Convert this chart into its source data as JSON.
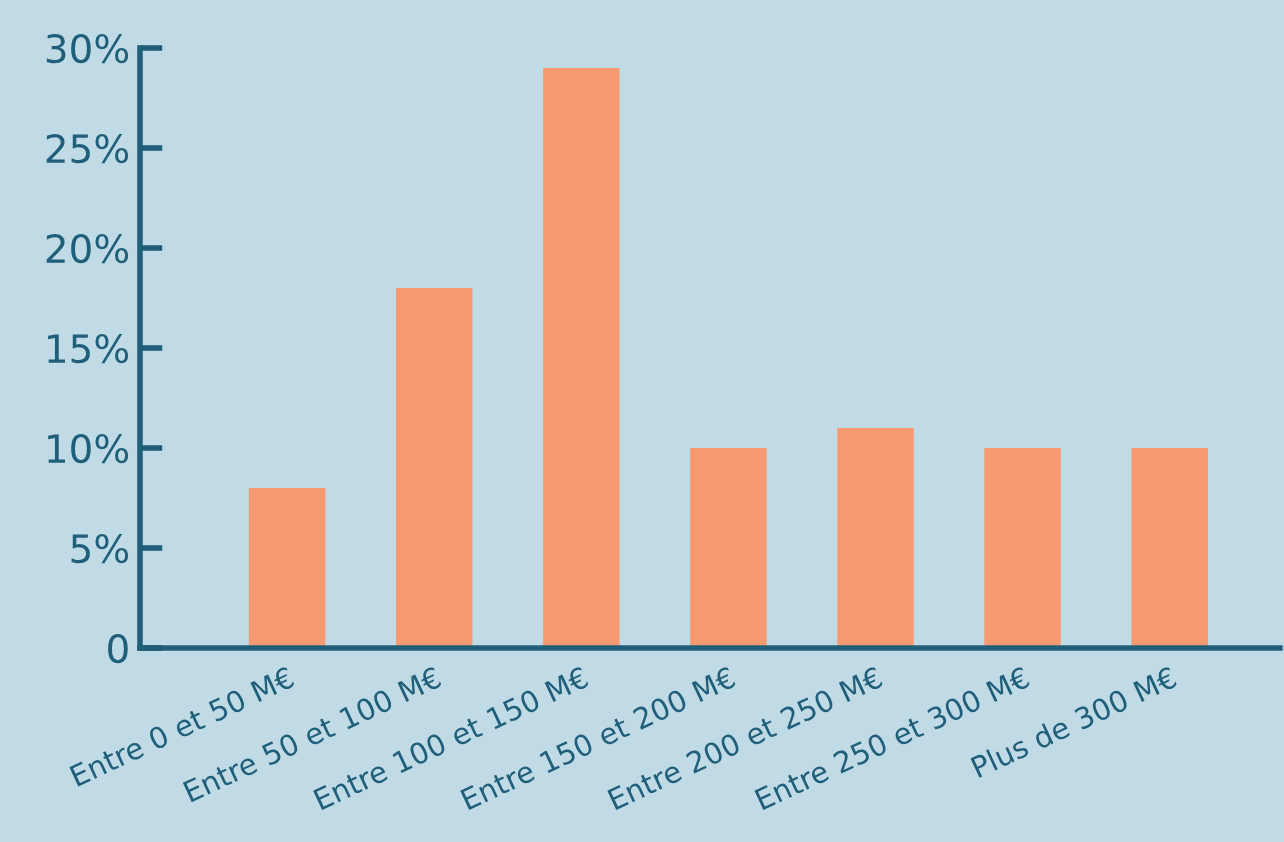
{
  "chart_data": {
    "type": "bar",
    "categories": [
      "Entre 0 et 50 M€",
      "Entre 50 et 100 M€",
      "Entre 100 et 150 M€",
      "Entre 150 et 200 M€",
      "Entre 200 et 250 M€",
      "Entre 250 et 300 M€",
      "Plus de 300 M€"
    ],
    "values": [
      8,
      18,
      29,
      10,
      11,
      10,
      10
    ],
    "color": "#f79a72",
    "ylim": [
      0,
      30
    ],
    "yticks": [
      {
        "value": 0,
        "label": "0"
      },
      {
        "value": 5,
        "label": "5%"
      },
      {
        "value": 10,
        "label": "10%"
      },
      {
        "value": 15,
        "label": "15%"
      },
      {
        "value": 20,
        "label": "20%"
      },
      {
        "value": 25,
        "label": "25%"
      },
      {
        "value": 30,
        "label": "30%"
      }
    ],
    "grid": false,
    "legend": false
  }
}
